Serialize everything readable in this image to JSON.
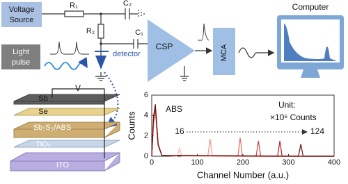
{
  "diagram": {
    "voltage_source": [
      "Voltage",
      "Source"
    ],
    "r1": "R₁",
    "r2": "R₂",
    "c1": "C₁",
    "c2": "C₂",
    "light_pulse": [
      "Light",
      "pulse"
    ],
    "detector": "detector",
    "csp": "CSP",
    "mca": "MCA",
    "computer": "Computer",
    "layers": [
      "Sb",
      "Se",
      "Sb₂S₃/ABS",
      "TiOₓ",
      "ITO"
    ],
    "voltage": "V"
  },
  "chart_data": {
    "type": "line",
    "xlabel": "Channel Number (a.u.)",
    "ylabel": "Counts",
    "annotations": [
      "ABS",
      "Unit:",
      "×10⁶ Counts",
      "16",
      "124"
    ],
    "xlim": [
      0,
      400
    ],
    "xticks": [
      0,
      100,
      200,
      300,
      400
    ],
    "ylim": [
      0,
      6
    ],
    "yticks": [
      0,
      2,
      4,
      6
    ],
    "series": [
      {
        "color": "#f5bcb5",
        "x": [
          0,
          4,
          8,
          14,
          22,
          56,
          61,
          66,
          400
        ],
        "values": [
          0,
          3.0,
          4.2,
          1.0,
          0.1,
          0,
          0.8,
          0,
          0
        ]
      },
      {
        "color": "#ef958c",
        "x": [
          0,
          4,
          8,
          14,
          22,
          123,
          128,
          133,
          400
        ],
        "values": [
          0,
          3.2,
          4.4,
          1.0,
          0.1,
          0,
          1.7,
          0,
          0
        ]
      },
      {
        "color": "#e4685e",
        "x": [
          0,
          4,
          8,
          14,
          22,
          189,
          194,
          199,
          400
        ],
        "values": [
          0,
          3.4,
          4.6,
          1.1,
          0.1,
          0,
          1.8,
          0,
          0
        ]
      },
      {
        "color": "#d0423a",
        "x": [
          0,
          4,
          8,
          14,
          22,
          229,
          234,
          239,
          400
        ],
        "values": [
          0,
          3.6,
          4.8,
          1.1,
          0.1,
          0,
          1.5,
          0,
          0
        ]
      },
      {
        "color": "#ad231e",
        "x": [
          0,
          4,
          8,
          14,
          22,
          276,
          281,
          286,
          400
        ],
        "values": [
          0,
          3.8,
          5.0,
          1.2,
          0.1,
          0,
          1.5,
          0,
          0
        ]
      },
      {
        "color": "#6c1214",
        "x": [
          0,
          4,
          8,
          14,
          22,
          322,
          327,
          332,
          400
        ],
        "values": [
          0,
          3.9,
          5.1,
          1.2,
          0.1,
          0,
          1.2,
          0,
          0
        ]
      }
    ]
  }
}
